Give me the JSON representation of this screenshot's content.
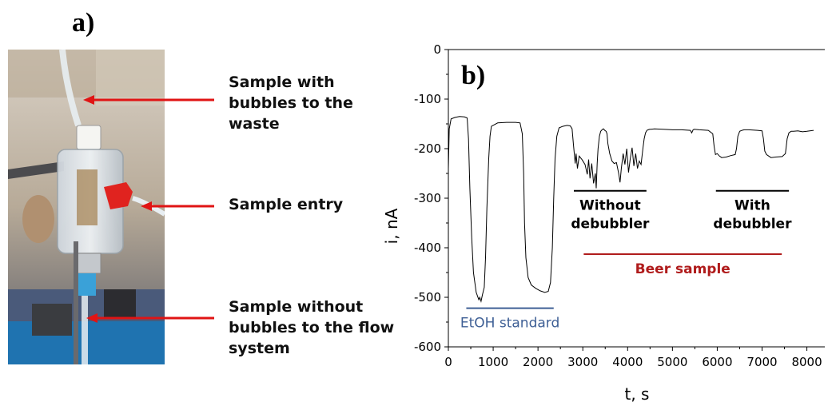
{
  "panel_a": {
    "label": "a)",
    "callouts": [
      [
        "Sample with",
        "bubbles to the",
        "waste"
      ],
      [
        "Sample entry"
      ],
      [
        "Sample without",
        "bubbles to the flow",
        "system"
      ]
    ]
  },
  "chart_data": {
    "type": "line",
    "panel_label": "b)",
    "xlabel": "t, s",
    "ylabel": "i, nA",
    "xlim": [
      0,
      8400
    ],
    "ylim": [
      -600,
      0
    ],
    "xticks": [
      0,
      1000,
      2000,
      3000,
      4000,
      5000,
      6000,
      7000,
      8000
    ],
    "yticks": [
      0,
      -100,
      -200,
      -300,
      -400,
      -500,
      -600
    ],
    "line_color": "#000000",
    "series": [
      {
        "x": [
          0,
          20,
          60,
          150,
          250,
          360,
          420,
          450,
          480,
          520,
          560,
          620,
          680,
          700,
          730,
          760,
          800,
          830,
          860,
          900,
          930,
          960,
          1100,
          1300,
          1500,
          1600,
          1650,
          1680,
          1700,
          1730,
          1780,
          1850,
          1950,
          2050,
          2150,
          2230,
          2280,
          2320,
          2350,
          2380,
          2420,
          2470,
          2550,
          2650,
          2720,
          2760,
          2790,
          2830,
          2850,
          2880,
          2920,
          2980,
          3050,
          3100,
          3130,
          3160,
          3200,
          3240,
          3280,
          3300,
          3320,
          3340,
          3370,
          3400,
          3430,
          3460,
          3490,
          3520,
          3540,
          3560,
          3600,
          3650,
          3700,
          3750,
          3800,
          3830,
          3860,
          3900,
          3940,
          3980,
          4020,
          4060,
          4100,
          4140,
          4180,
          4220,
          4260,
          4300,
          4340,
          4370,
          4400,
          4430,
          4460,
          4490,
          4520,
          4600,
          4800,
          5000,
          5200,
          5400,
          5430,
          5460,
          5490,
          5600,
          5800,
          5900,
          5930,
          5960,
          6000,
          6050,
          6100,
          6200,
          6300,
          6400,
          6430,
          6460,
          6500,
          6550,
          6600,
          6700,
          6900,
          7000,
          7030,
          7060,
          7100,
          7150,
          7200,
          7300,
          7450,
          7520,
          7560,
          7600,
          7650,
          7700,
          7800,
          7900,
          8000,
          8150
        ],
        "values": [
          -240,
          -160,
          -140,
          -137,
          -135,
          -136,
          -138,
          -180,
          -280,
          -380,
          -450,
          -490,
          -505,
          -500,
          -508,
          -495,
          -480,
          -420,
          -320,
          -220,
          -175,
          -155,
          -148,
          -147,
          -147,
          -148,
          -170,
          -250,
          -350,
          -420,
          -460,
          -475,
          -482,
          -487,
          -490,
          -488,
          -470,
          -400,
          -300,
          -220,
          -175,
          -158,
          -155,
          -153,
          -154,
          -160,
          -190,
          -230,
          -210,
          -240,
          -215,
          -222,
          -232,
          -252,
          -222,
          -260,
          -230,
          -270,
          -250,
          -280,
          -230,
          -200,
          -175,
          -165,
          -162,
          -160,
          -163,
          -165,
          -170,
          -190,
          -210,
          -225,
          -230,
          -228,
          -250,
          -268,
          -240,
          -210,
          -232,
          -200,
          -248,
          -220,
          -198,
          -235,
          -210,
          -240,
          -225,
          -232,
          -200,
          -180,
          -168,
          -163,
          -162,
          -161,
          -161,
          -160,
          -161,
          -162,
          -162,
          -163,
          -168,
          -162,
          -161,
          -162,
          -163,
          -170,
          -195,
          -212,
          -210,
          -215,
          -218,
          -217,
          -214,
          -212,
          -200,
          -175,
          -165,
          -163,
          -162,
          -162,
          -163,
          -164,
          -180,
          -205,
          -212,
          -215,
          -218,
          -217,
          -216,
          -210,
          -180,
          -168,
          -165,
          -165,
          -164,
          -166,
          -165,
          -163
        ]
      }
    ],
    "annotations": [
      {
        "text": "EtOH standard",
        "x_range": [
          400,
          2350
        ],
        "y": -522,
        "color": "#3e5f95"
      },
      {
        "text": "Without",
        "text2": "debubbler",
        "x_range": [
          2800,
          4420
        ],
        "y": -285,
        "color": "#000000"
      },
      {
        "text": "With",
        "text2": "debubbler",
        "x_range": [
          5970,
          7600
        ],
        "y": -285,
        "color": "#000000"
      },
      {
        "text": "Beer sample",
        "x_range": [
          3020,
          7440
        ],
        "y": -413,
        "color": "#b01c1c"
      }
    ]
  }
}
